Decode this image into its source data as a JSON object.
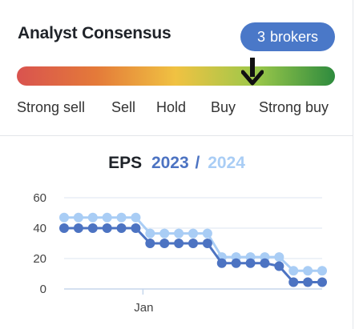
{
  "header": {
    "title": "Analyst Consensus",
    "broker_count": "3",
    "broker_label": "brokers"
  },
  "gauge": {
    "labels": [
      "Strong sell",
      "Sell",
      "Hold",
      "Buy",
      "Strong buy"
    ],
    "pointer_value": 0.74,
    "colors": [
      "#d9534f",
      "#e47a39",
      "#f0c242",
      "#9cc84a",
      "#2e8b3e"
    ]
  },
  "chart_title": {
    "label": "EPS",
    "year1": "2023",
    "separator": "/",
    "year2": "2024"
  },
  "colors": {
    "accent": "#4a78c8",
    "series_2023": "#4c73c2",
    "series_2024": "#a9cdf5",
    "grid": "#dde6f2"
  },
  "chart_data": {
    "type": "line",
    "xlabel": "",
    "ylabel": "",
    "ylim": [
      0,
      60
    ],
    "yticks": [
      0,
      20,
      40,
      60
    ],
    "xticks": [
      {
        "label": "Jan",
        "index": 5.5
      }
    ],
    "grid": true,
    "series": [
      {
        "name": "2024",
        "values": [
          47,
          47,
          47,
          47,
          47,
          47,
          36.5,
          36.5,
          36.5,
          36.5,
          36.5,
          21,
          21,
          21,
          21,
          21,
          12,
          12,
          12
        ]
      },
      {
        "name": "2023",
        "values": [
          40,
          40,
          40,
          40,
          40,
          40,
          30,
          30,
          30,
          30,
          30,
          17,
          17,
          17,
          17,
          15,
          4.5,
          4.5,
          4.5
        ]
      }
    ]
  }
}
